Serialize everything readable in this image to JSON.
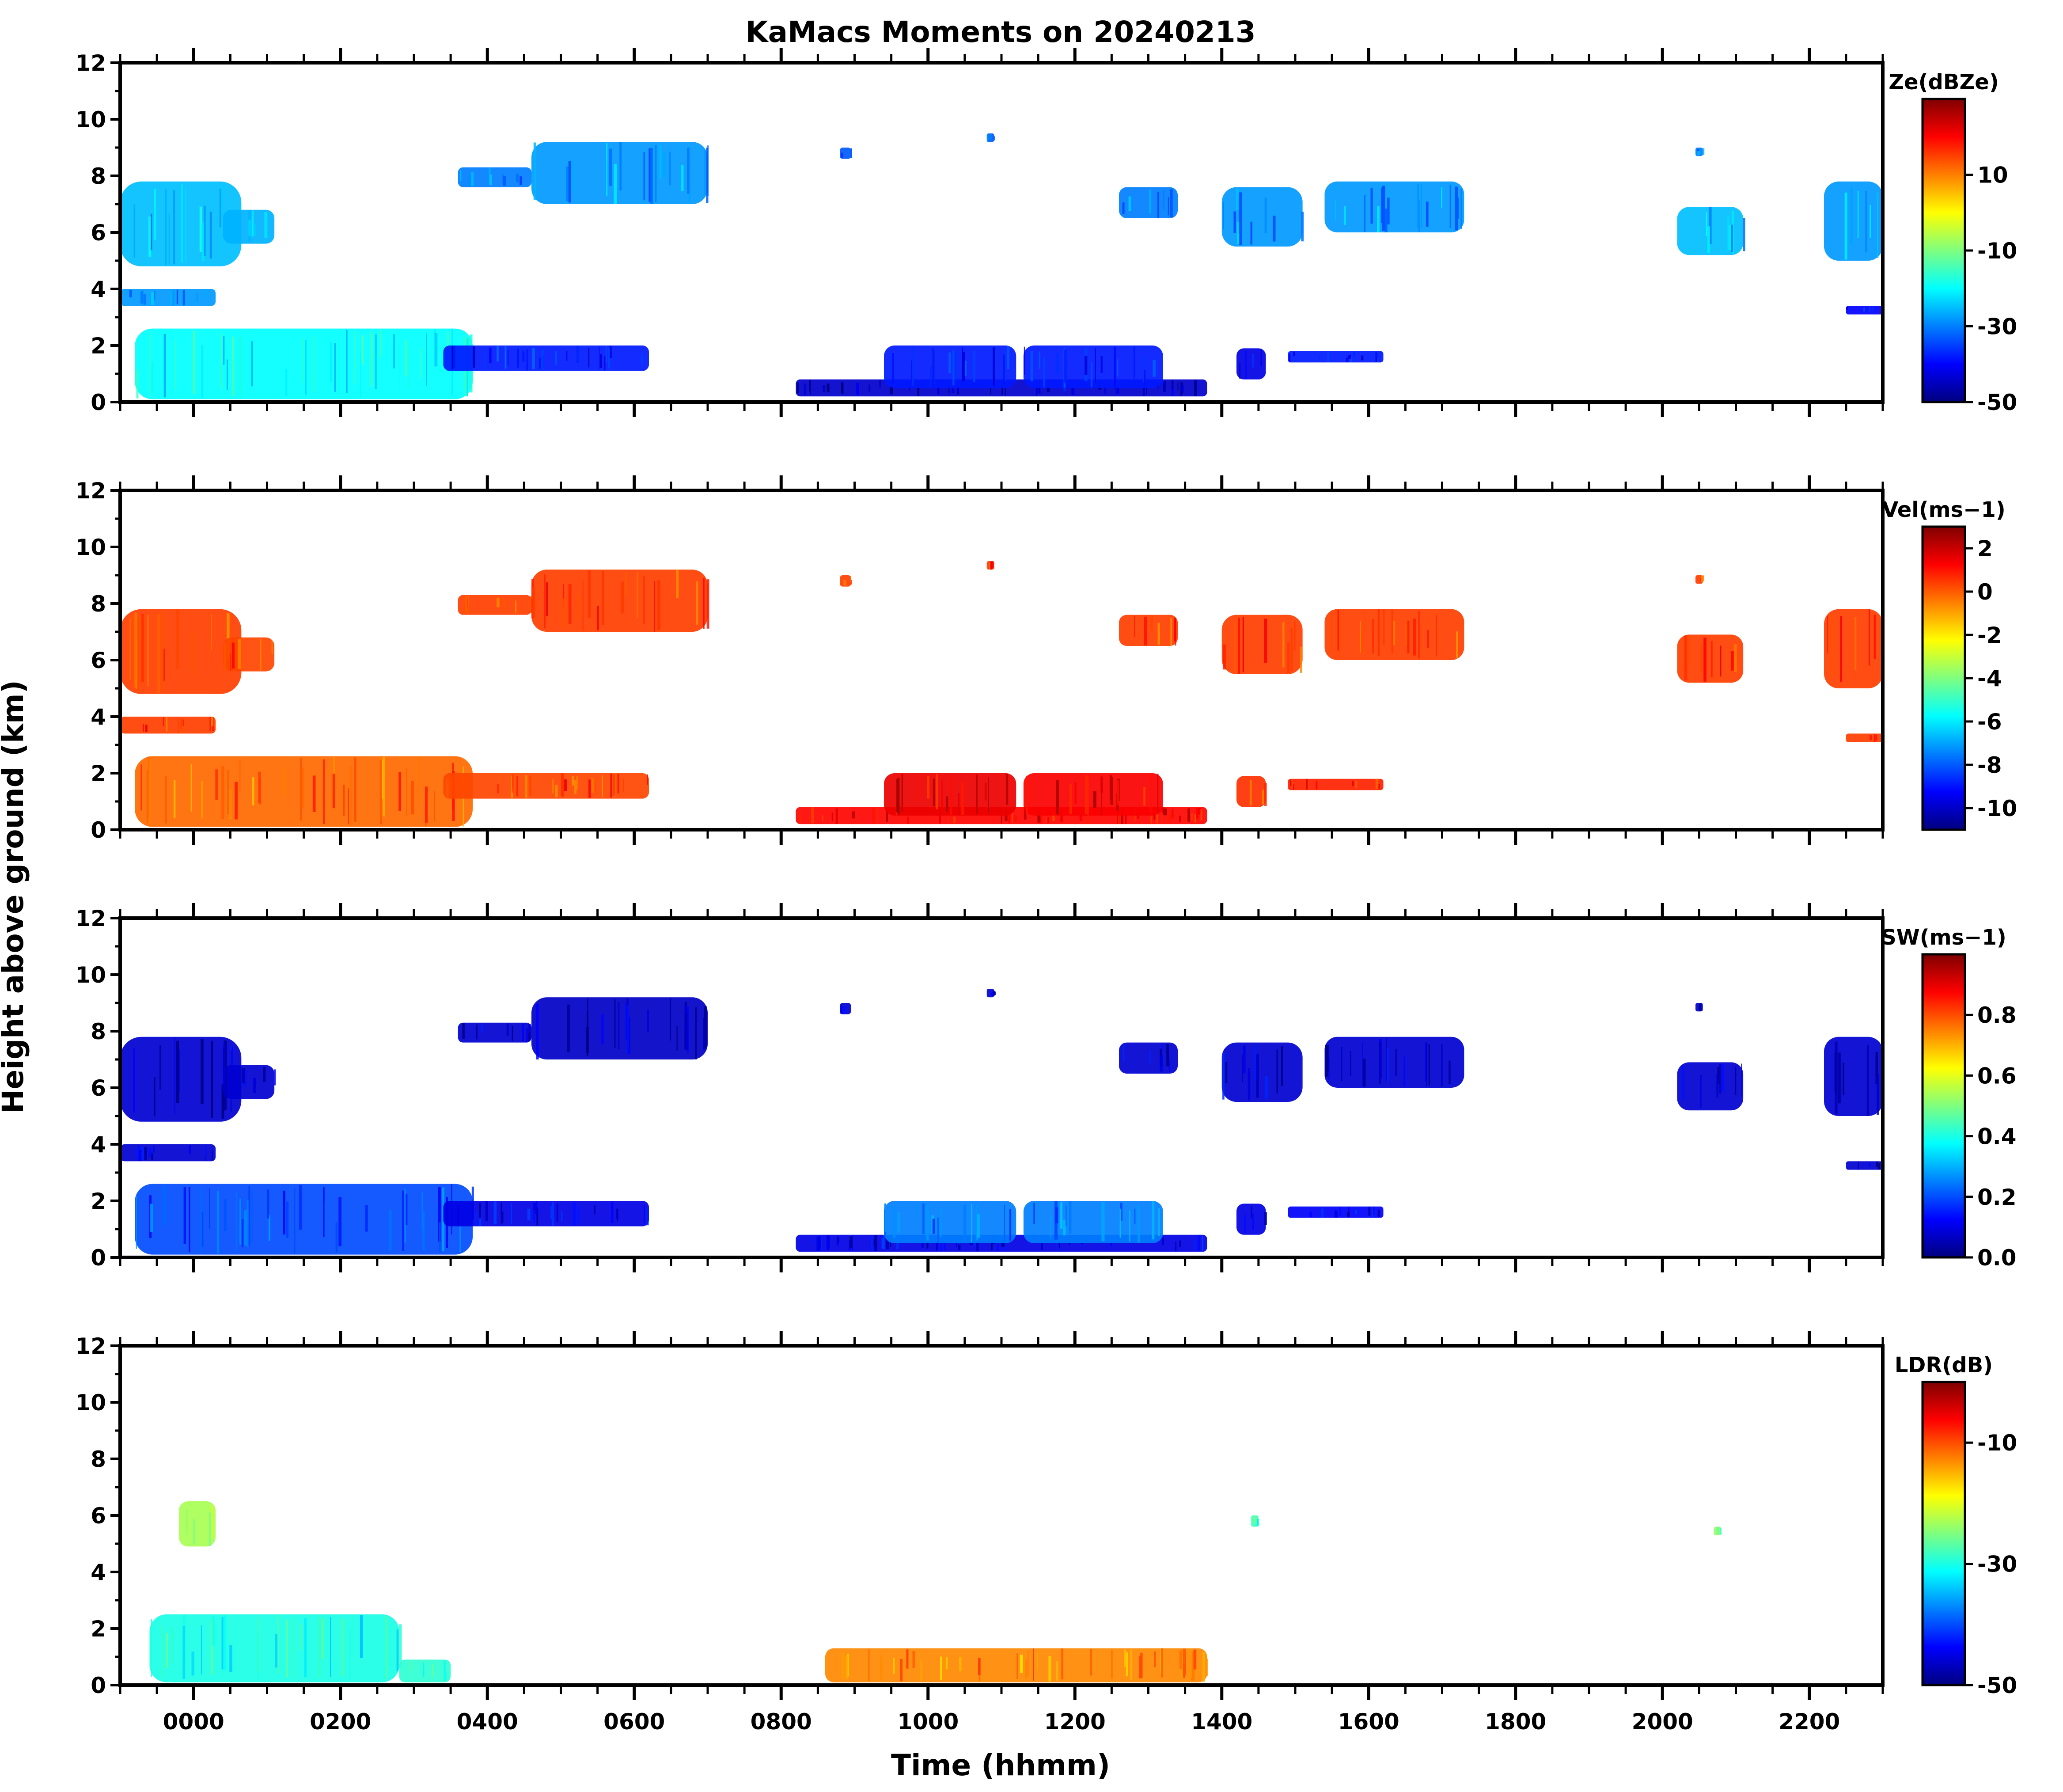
{
  "chart_data": {
    "type": "heatmap",
    "title": "KaMacs Moments on 20240213",
    "xlabel": "Time (hhmm)",
    "ylabel": "Height above ground (km)",
    "x_unit": "hours relative to 0000 UTC",
    "xlim": [
      -1.0,
      23.0
    ],
    "ylim": [
      0,
      12
    ],
    "x_ticks": [
      {
        "value": 0,
        "label": "0000"
      },
      {
        "value": 2,
        "label": "0200"
      },
      {
        "value": 4,
        "label": "0400"
      },
      {
        "value": 6,
        "label": "0600"
      },
      {
        "value": 8,
        "label": "0800"
      },
      {
        "value": 10,
        "label": "1000"
      },
      {
        "value": 12,
        "label": "1200"
      },
      {
        "value": 14,
        "label": "1400"
      },
      {
        "value": 16,
        "label": "1600"
      },
      {
        "value": 18,
        "label": "1800"
      },
      {
        "value": 20,
        "label": "2000"
      },
      {
        "value": 22,
        "label": "2200"
      }
    ],
    "y_ticks": [
      {
        "value": 0,
        "label": "0"
      },
      {
        "value": 2,
        "label": "2"
      },
      {
        "value": 4,
        "label": "4"
      },
      {
        "value": 6,
        "label": "6"
      },
      {
        "value": 8,
        "label": "8"
      },
      {
        "value": 10,
        "label": "10"
      },
      {
        "value": 12,
        "label": "12"
      }
    ],
    "colormap": [
      "#00007f",
      "#0000ff",
      "#007fff",
      "#00ffff",
      "#7fff7f",
      "#ffff00",
      "#ff7f00",
      "#ff0000",
      "#7f0000"
    ],
    "panels": [
      {
        "id": "ze",
        "colorbar_label": "Ze(dBZe)",
        "cbar_range": [
          -50,
          30
        ],
        "cbar_ticks": [
          {
            "value": 10,
            "label": "10"
          },
          {
            "value": -10,
            "label": "-10"
          },
          {
            "value": -30,
            "label": "-30"
          },
          {
            "value": -50,
            "label": "-50"
          }
        ],
        "regions": [
          {
            "t0": -1.0,
            "t1": 0.65,
            "z0": 4.8,
            "z1": 7.8,
            "v": -25
          },
          {
            "t0": 0.4,
            "t1": 1.1,
            "z0": 5.6,
            "z1": 6.8,
            "v": -26
          },
          {
            "t0": -1.0,
            "t1": 0.3,
            "z0": 3.4,
            "z1": 4.0,
            "v": -28
          },
          {
            "t0": -0.8,
            "t1": 3.8,
            "z0": 0.1,
            "z1": 2.6,
            "v": -20
          },
          {
            "t0": 3.4,
            "t1": 6.2,
            "z0": 1.1,
            "z1": 2.0,
            "v": -38
          },
          {
            "t0": 3.6,
            "t1": 4.6,
            "z0": 7.6,
            "z1": 8.3,
            "v": -30
          },
          {
            "t0": 4.6,
            "t1": 7.0,
            "z0": 7.0,
            "z1": 9.2,
            "v": -28
          },
          {
            "t0": 8.8,
            "t1": 8.95,
            "z0": 8.6,
            "z1": 9.0,
            "v": -33
          },
          {
            "t0": 10.8,
            "t1": 10.9,
            "z0": 9.2,
            "z1": 9.5,
            "v": -33
          },
          {
            "t0": 8.2,
            "t1": 13.8,
            "z0": 0.2,
            "z1": 0.8,
            "v": -44
          },
          {
            "t0": 9.4,
            "t1": 11.2,
            "z0": 0.5,
            "z1": 2.0,
            "v": -38
          },
          {
            "t0": 11.3,
            "t1": 13.2,
            "z0": 0.5,
            "z1": 2.0,
            "v": -38
          },
          {
            "t0": 14.2,
            "t1": 14.6,
            "z0": 0.8,
            "z1": 1.9,
            "v": -42
          },
          {
            "t0": 14.9,
            "t1": 16.2,
            "z0": 1.4,
            "z1": 1.8,
            "v": -38
          },
          {
            "t0": 12.6,
            "t1": 13.4,
            "z0": 6.5,
            "z1": 7.6,
            "v": -30
          },
          {
            "t0": 14.0,
            "t1": 15.1,
            "z0": 5.5,
            "z1": 7.6,
            "v": -28
          },
          {
            "t0": 15.4,
            "t1": 17.3,
            "z0": 6.0,
            "z1": 7.8,
            "v": -28
          },
          {
            "t0": 20.2,
            "t1": 21.1,
            "z0": 5.2,
            "z1": 6.9,
            "v": -25
          },
          {
            "t0": 20.45,
            "t1": 20.55,
            "z0": 8.7,
            "z1": 9.0,
            "v": -30
          },
          {
            "t0": 22.2,
            "t1": 23.0,
            "z0": 5.0,
            "z1": 7.8,
            "v": -28
          },
          {
            "t0": 22.5,
            "t1": 23.0,
            "z0": 3.1,
            "z1": 3.4,
            "v": -40
          }
        ]
      },
      {
        "id": "vel",
        "colorbar_label": "Vel(ms−1)",
        "cbar_range": [
          -11,
          3
        ],
        "cbar_ticks": [
          {
            "value": 2,
            "label": "2"
          },
          {
            "value": 0,
            "label": "0"
          },
          {
            "value": -2,
            "label": "-2"
          },
          {
            "value": -4,
            "label": "-4"
          },
          {
            "value": -6,
            "label": "-6"
          },
          {
            "value": -8,
            "label": "-8"
          },
          {
            "value": -10,
            "label": "-10"
          }
        ],
        "regions": [
          {
            "t0": -1.0,
            "t1": 0.65,
            "z0": 4.8,
            "z1": 7.8,
            "v": 0.4
          },
          {
            "t0": 0.4,
            "t1": 1.1,
            "z0": 5.6,
            "z1": 6.8,
            "v": 0.3
          },
          {
            "t0": -1.0,
            "t1": 0.3,
            "z0": 3.4,
            "z1": 4.0,
            "v": 0.4
          },
          {
            "t0": -0.8,
            "t1": 3.8,
            "z0": 0.1,
            "z1": 2.6,
            "v": -0.2
          },
          {
            "t0": 3.4,
            "t1": 6.2,
            "z0": 1.1,
            "z1": 2.0,
            "v": 0.3
          },
          {
            "t0": 3.6,
            "t1": 4.6,
            "z0": 7.6,
            "z1": 8.3,
            "v": 0.4
          },
          {
            "t0": 4.6,
            "t1": 7.0,
            "z0": 7.0,
            "z1": 9.2,
            "v": 0.4
          },
          {
            "t0": 8.8,
            "t1": 8.95,
            "z0": 8.6,
            "z1": 9.0,
            "v": 0.4
          },
          {
            "t0": 10.8,
            "t1": 10.9,
            "z0": 9.2,
            "z1": 9.5,
            "v": 0.4
          },
          {
            "t0": 8.2,
            "t1": 13.8,
            "z0": 0.2,
            "z1": 0.8,
            "v": 1.2
          },
          {
            "t0": 9.4,
            "t1": 11.2,
            "z0": 0.5,
            "z1": 2.0,
            "v": 1.5
          },
          {
            "t0": 11.3,
            "t1": 13.2,
            "z0": 0.5,
            "z1": 2.0,
            "v": 1.3
          },
          {
            "t0": 14.2,
            "t1": 14.6,
            "z0": 0.8,
            "z1": 1.9,
            "v": 0.6
          },
          {
            "t0": 14.9,
            "t1": 16.2,
            "z0": 1.4,
            "z1": 1.8,
            "v": 0.8
          },
          {
            "t0": 12.6,
            "t1": 13.4,
            "z0": 6.5,
            "z1": 7.6,
            "v": 0.4
          },
          {
            "t0": 14.0,
            "t1": 15.1,
            "z0": 5.5,
            "z1": 7.6,
            "v": 0.4
          },
          {
            "t0": 15.4,
            "t1": 17.3,
            "z0": 6.0,
            "z1": 7.8,
            "v": 0.4
          },
          {
            "t0": 20.2,
            "t1": 21.1,
            "z0": 5.2,
            "z1": 6.9,
            "v": 0.4
          },
          {
            "t0": 20.45,
            "t1": 20.55,
            "z0": 8.7,
            "z1": 9.0,
            "v": 0.4
          },
          {
            "t0": 22.2,
            "t1": 23.0,
            "z0": 5.0,
            "z1": 7.8,
            "v": 0.4
          },
          {
            "t0": 22.5,
            "t1": 23.0,
            "z0": 3.1,
            "z1": 3.4,
            "v": 0.4
          }
        ]
      },
      {
        "id": "sw",
        "colorbar_label": "SW(ms−1)",
        "cbar_range": [
          0.0,
          1.0
        ],
        "cbar_ticks": [
          {
            "value": 0.8,
            "label": "0.8"
          },
          {
            "value": 0.6,
            "label": "0.6"
          },
          {
            "value": 0.4,
            "label": "0.4"
          },
          {
            "value": 0.2,
            "label": "0.2"
          },
          {
            "value": 0.0,
            "label": "0.0"
          }
        ],
        "regions": [
          {
            "t0": -1.0,
            "t1": 0.65,
            "z0": 4.8,
            "z1": 7.8,
            "v": 0.08
          },
          {
            "t0": 0.4,
            "t1": 1.1,
            "z0": 5.6,
            "z1": 6.8,
            "v": 0.08
          },
          {
            "t0": -1.0,
            "t1": 0.3,
            "z0": 3.4,
            "z1": 4.0,
            "v": 0.08
          },
          {
            "t0": -0.8,
            "t1": 3.8,
            "z0": 0.1,
            "z1": 2.6,
            "v": 0.2
          },
          {
            "t0": 3.4,
            "t1": 6.2,
            "z0": 1.1,
            "z1": 2.0,
            "v": 0.1
          },
          {
            "t0": 3.6,
            "t1": 4.6,
            "z0": 7.6,
            "z1": 8.3,
            "v": 0.08
          },
          {
            "t0": 4.6,
            "t1": 7.0,
            "z0": 7.0,
            "z1": 9.2,
            "v": 0.07
          },
          {
            "t0": 8.8,
            "t1": 8.95,
            "z0": 8.6,
            "z1": 9.0,
            "v": 0.08
          },
          {
            "t0": 10.8,
            "t1": 10.9,
            "z0": 9.2,
            "z1": 9.5,
            "v": 0.08
          },
          {
            "t0": 8.2,
            "t1": 13.8,
            "z0": 0.2,
            "z1": 0.8,
            "v": 0.1
          },
          {
            "t0": 9.4,
            "t1": 11.2,
            "z0": 0.5,
            "z1": 2.0,
            "v": 0.25
          },
          {
            "t0": 11.3,
            "t1": 13.2,
            "z0": 0.5,
            "z1": 2.0,
            "v": 0.25
          },
          {
            "t0": 14.2,
            "t1": 14.6,
            "z0": 0.8,
            "z1": 1.9,
            "v": 0.1
          },
          {
            "t0": 14.9,
            "t1": 16.2,
            "z0": 1.4,
            "z1": 1.8,
            "v": 0.12
          },
          {
            "t0": 12.6,
            "t1": 13.4,
            "z0": 6.5,
            "z1": 7.6,
            "v": 0.08
          },
          {
            "t0": 14.0,
            "t1": 15.1,
            "z0": 5.5,
            "z1": 7.6,
            "v": 0.08
          },
          {
            "t0": 15.4,
            "t1": 17.3,
            "z0": 6.0,
            "z1": 7.8,
            "v": 0.08
          },
          {
            "t0": 20.2,
            "t1": 21.1,
            "z0": 5.2,
            "z1": 6.9,
            "v": 0.08
          },
          {
            "t0": 20.45,
            "t1": 20.55,
            "z0": 8.7,
            "z1": 9.0,
            "v": 0.08
          },
          {
            "t0": 22.2,
            "t1": 23.0,
            "z0": 5.0,
            "z1": 7.8,
            "v": 0.08
          },
          {
            "t0": 22.5,
            "t1": 23.0,
            "z0": 3.1,
            "z1": 3.4,
            "v": 0.08
          }
        ]
      },
      {
        "id": "ldr",
        "colorbar_label": "LDR(dB)",
        "cbar_range": [
          -50,
          0
        ],
        "cbar_ticks": [
          {
            "value": -10,
            "label": "-10"
          },
          {
            "value": -30,
            "label": "-30"
          },
          {
            "value": -50,
            "label": "-50"
          }
        ],
        "regions": [
          {
            "t0": -0.2,
            "t1": 0.3,
            "z0": 4.9,
            "z1": 6.5,
            "v": -23
          },
          {
            "t0": -0.6,
            "t1": 2.8,
            "z0": 0.1,
            "z1": 2.5,
            "v": -30
          },
          {
            "t0": 2.8,
            "t1": 3.5,
            "z0": 0.1,
            "z1": 0.9,
            "v": -29
          },
          {
            "t0": 8.6,
            "t1": 13.8,
            "z0": 0.1,
            "z1": 1.3,
            "v": -13
          },
          {
            "t0": 14.4,
            "t1": 14.5,
            "z0": 5.6,
            "z1": 6.0,
            "v": -28
          },
          {
            "t0": 20.7,
            "t1": 20.8,
            "z0": 5.3,
            "z1": 5.6,
            "v": -24
          }
        ]
      }
    ]
  }
}
